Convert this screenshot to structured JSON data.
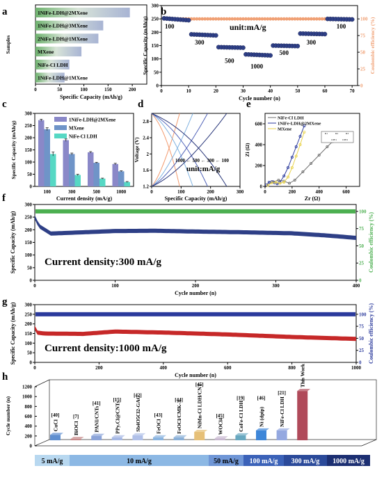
{
  "panel_labels": [
    "a",
    "b",
    "c",
    "d",
    "e",
    "f",
    "g",
    "h"
  ],
  "colors": {
    "navy": "#2e3f86",
    "orange": "#f0a074",
    "green": "#4caf50",
    "red": "#c62828",
    "blue": "#2b3a9c",
    "purple": "#8a88c8",
    "steel": "#6f94c8",
    "teal": "#56d8c4",
    "gray": "#707070",
    "yellow": "#e8d24a"
  },
  "chart_data": [
    {
      "panel": "a",
      "type": "bar",
      "orientation": "horizontal",
      "ylabel": "Samples",
      "xlabel": "Specific Capacity (mAh/g)",
      "xlim": [
        0,
        230
      ],
      "xticks": [
        0,
        50,
        100,
        150,
        200
      ],
      "categories": [
        "1NiFe-LDH@2MXene",
        "1NiFe-LDH@3MXene",
        "2NiFe-LDH@1MXene",
        "MXene",
        "NiFe-Cl LDH",
        "1NiFe-LDH@1MXene"
      ],
      "values": [
        195,
        140,
        130,
        95,
        70,
        60
      ]
    },
    {
      "panel": "b",
      "type": "scatter",
      "xlabel": "Cycle number (n)",
      "ylabel": "Specific Capacity (mAh/g)",
      "y2label": "Coulombic efficiency (%)",
      "annotation": "unit:mA/g",
      "xlim": [
        0,
        72
      ],
      "xticks": [
        0,
        10,
        20,
        30,
        40,
        50,
        60,
        70
      ],
      "ylim": [
        0,
        300
      ],
      "yticks": [
        0,
        50,
        100,
        150,
        200,
        250,
        300
      ],
      "y2lim": [
        0,
        120
      ],
      "y2ticks": [
        0,
        25,
        50,
        75,
        100
      ],
      "rate_labels": [
        {
          "text": "100",
          "x": 3,
          "y": 222
        },
        {
          "text": "300",
          "x": 14,
          "y": 162
        },
        {
          "text": "500",
          "x": 25,
          "y": 92
        },
        {
          "text": "1000",
          "x": 35,
          "y": 72
        },
        {
          "text": "500",
          "x": 45,
          "y": 122
        },
        {
          "text": "300",
          "x": 55,
          "y": 162
        },
        {
          "text": "100",
          "x": 66,
          "y": 222
        }
      ],
      "segments": [
        {
          "rate": 100,
          "x_start": 1,
          "x_end": 10,
          "y_start": 252,
          "y_end": 245
        },
        {
          "rate": 300,
          "x_start": 11,
          "x_end": 20,
          "y_start": 192,
          "y_end": 188
        },
        {
          "rate": 500,
          "x_start": 21,
          "x_end": 30,
          "y_start": 144,
          "y_end": 142
        },
        {
          "rate": 1000,
          "x_start": 31,
          "x_end": 40,
          "y_start": 117,
          "y_end": 113
        },
        {
          "rate": 500,
          "x_start": 41,
          "x_end": 50,
          "y_start": 150,
          "y_end": 148
        },
        {
          "rate": 300,
          "x_start": 51,
          "x_end": 60,
          "y_start": 195,
          "y_end": 193
        },
        {
          "rate": 100,
          "x_start": 61,
          "x_end": 70,
          "y_start": 250,
          "y_end": 248
        }
      ],
      "coulombic_efficiency": 100
    },
    {
      "panel": "c",
      "type": "bar",
      "xlabel": "Current density (mA/g)",
      "ylabel": "Specific Capacity (mAh/g)",
      "categories": [
        "100",
        "300",
        "500",
        "1000"
      ],
      "ylim": [
        0,
        300
      ],
      "yticks": [
        0,
        50,
        100,
        150,
        200,
        250,
        300
      ],
      "series": [
        {
          "name": "1NiFe-LDH@2MXene",
          "values": [
            272,
            190,
            140,
            92
          ],
          "errors": [
            4,
            5,
            3,
            3
          ]
        },
        {
          "name": "MXene",
          "values": [
            235,
            133,
            97,
            62
          ],
          "errors": [
            6,
            4,
            2,
            2
          ]
        },
        {
          "name": "NiFe-Cl LDH",
          "values": [
            133,
            47,
            32,
            18
          ],
          "errors": [
            8,
            3,
            2,
            2
          ]
        }
      ]
    },
    {
      "panel": "d",
      "type": "line",
      "xlabel": "Specific Capacity (mAh/g)",
      "ylabel": "Voltage (V)",
      "annotation": "unit:mA/g",
      "rate_labels": [
        "1000",
        "500",
        "300",
        "100"
      ],
      "xlim": [
        0,
        300
      ],
      "xticks": [
        0,
        100,
        200,
        300
      ],
      "ylim": [
        1.2,
        3.0
      ],
      "yticks": [
        1.2,
        1.6,
        2.0,
        2.4,
        2.8
      ],
      "max_capacity": [
        95,
        140,
        190,
        255
      ]
    },
    {
      "panel": "e",
      "type": "scatter",
      "xlabel": "Zr (Ω)",
      "ylabel": "Zi (Ω)",
      "xlim": [
        0,
        700
      ],
      "xticks": [
        0,
        200,
        400,
        600
      ],
      "ylim": [
        0,
        700
      ],
      "yticks": [
        0,
        200,
        400,
        600
      ],
      "series": [
        {
          "name": "NiFe-Cl LDH",
          "x": [
            20,
            60,
            100,
            140,
            180,
            220,
            280,
            340,
            400,
            460,
            500
          ],
          "y": [
            10,
            45,
            60,
            50,
            30,
            60,
            140,
            220,
            300,
            380,
            430
          ]
        },
        {
          "name": "1NiFe-LDH@2MXene",
          "x": [
            10,
            30,
            50,
            70,
            90,
            110,
            140,
            170,
            200,
            230,
            260,
            290
          ],
          "y": [
            15,
            40,
            45,
            35,
            25,
            40,
            100,
            180,
            280,
            380,
            480,
            580
          ]
        },
        {
          "name": "MXene",
          "x": [
            20,
            50,
            80,
            110,
            140,
            170,
            200,
            230,
            260,
            290
          ],
          "y": [
            10,
            35,
            40,
            30,
            40,
            90,
            180,
            290,
            400,
            520
          ]
        }
      ],
      "inset_labels": [
        "R1",
        "R2",
        "R3",
        "CPE1",
        "CPE2"
      ]
    },
    {
      "panel": "f",
      "type": "scatter",
      "annotation": "Current density:300 mA/g",
      "xlabel": "Cycle number (n)",
      "ylabel": "Specific Capacity (mAh/g)",
      "y2label": "Coulombic efficiency (%)",
      "xlim": [
        0,
        400
      ],
      "xticks": [
        0,
        100,
        200,
        300,
        400
      ],
      "ylim": [
        0,
        300
      ],
      "yticks": [
        0,
        50,
        100,
        150,
        200,
        250,
        300
      ],
      "y2lim": [
        0,
        110
      ],
      "y2ticks": [
        0,
        25,
        50,
        75,
        100
      ],
      "capacity_profile": {
        "x": [
          0,
          5,
          20,
          60,
          100,
          150,
          200,
          260,
          320,
          360,
          400
        ],
        "y": [
          250,
          215,
          185,
          190,
          195,
          196,
          193,
          190,
          186,
          178,
          168
        ]
      },
      "coulombic_efficiency": 100
    },
    {
      "panel": "g",
      "type": "scatter",
      "annotation": "Current density:1000 mA/g",
      "xlabel": "Cycle number (n)",
      "ylabel": "Specific Capacity (mAh/g)",
      "y2label": "Coulombic efficiency (%)",
      "xlim": [
        0,
        1000
      ],
      "xticks": [
        0,
        200,
        400,
        600,
        800,
        1000
      ],
      "ylim": [
        0,
        300
      ],
      "yticks": [
        0,
        50,
        100,
        150,
        200,
        250,
        300
      ],
      "y2lim": [
        0,
        120
      ],
      "y2ticks": [
        0,
        25,
        50,
        75,
        100
      ],
      "capacity_profile": {
        "x": [
          0,
          5,
          30,
          150,
          250,
          400,
          600,
          800,
          1000
        ],
        "y": [
          180,
          155,
          150,
          148,
          160,
          155,
          145,
          132,
          122
        ]
      },
      "coulombic_efficiency": 100
    },
    {
      "panel": "h",
      "type": "bar",
      "ylabel": "Cycle number (n)",
      "ylim": [
        0,
        1200
      ],
      "yticks": [
        0,
        200,
        400,
        600,
        800,
        1000,
        1200
      ],
      "categories": [
        "CuCl",
        "BiOCl",
        "PANI/CNTs",
        "PPy.Cl@CNTs",
        "Sb4O5Cl2-GAG",
        "FeOCl",
        "FeOCl/CMK-3",
        "NiMn-Cl LDH/CNT",
        "WOCl4",
        "CoFe-Cl LDH",
        "Ni (dpip)",
        "NiFe-Cl LDH",
        "This Work"
      ],
      "refs": [
        "[40]",
        "[7]",
        "[41]",
        "[15]",
        "[42]",
        "[43]",
        "[44]",
        "[45]",
        "[45]",
        "[19]",
        "[46]",
        "[21]",
        ""
      ],
      "values": [
        110,
        15,
        90,
        60,
        100,
        60,
        60,
        170,
        40,
        100,
        200,
        200,
        1000
      ],
      "current_bands": [
        "5 mA/g",
        "10 mA/g",
        "50 mA/g",
        "100 mA/g",
        "300 mA/g",
        "1000 mA/g"
      ]
    }
  ]
}
